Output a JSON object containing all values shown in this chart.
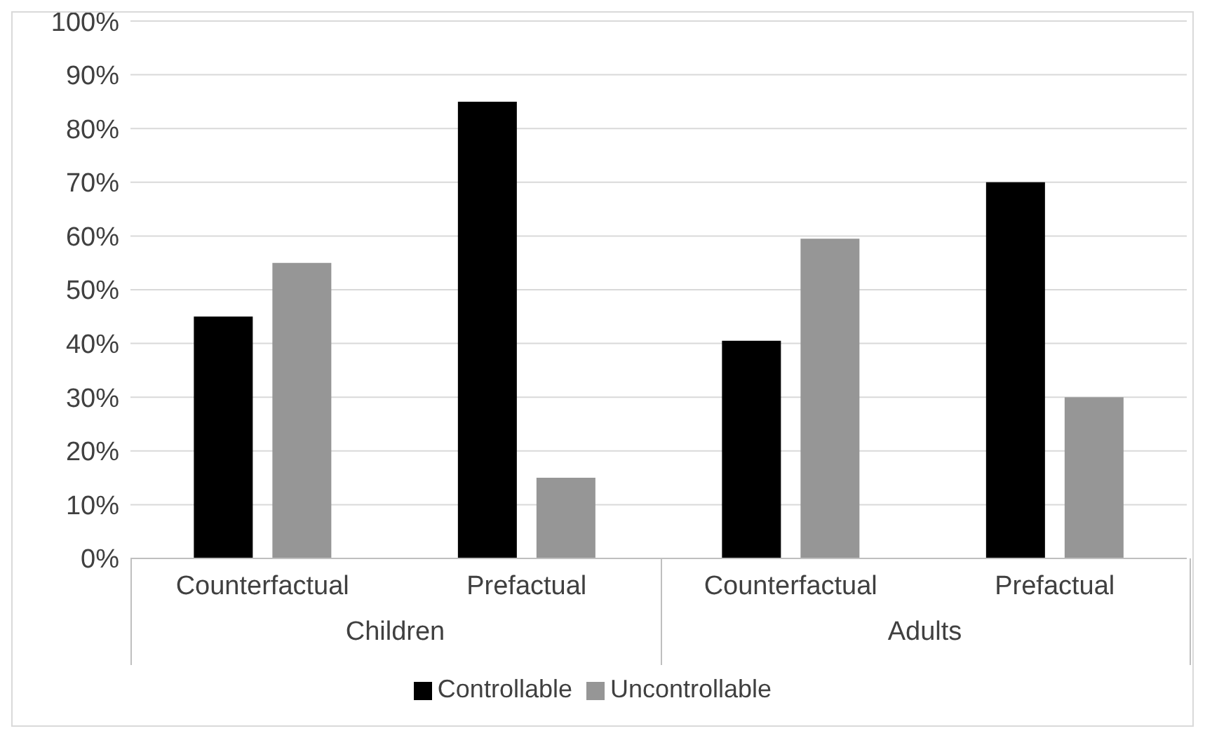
{
  "chart_data": {
    "type": "bar",
    "categories": [
      "Counterfactual",
      "Prefactual",
      "Counterfactual",
      "Prefactual"
    ],
    "series": [
      {
        "name": "Controllable",
        "color": "#000000",
        "values": [
          45,
          85,
          40.5,
          70
        ]
      },
      {
        "name": "Uncontrollable",
        "color": "#969696",
        "values": [
          55,
          15,
          59.5,
          30
        ]
      }
    ],
    "annotations": [
      "Children",
      "Adults"
    ],
    "ylim": [
      0,
      100
    ],
    "yticks": [
      {
        "value": 0,
        "label": "0%"
      },
      {
        "value": 10,
        "label": "10%"
      },
      {
        "value": 20,
        "label": "20%"
      },
      {
        "value": 30,
        "label": "30%"
      },
      {
        "value": 40,
        "label": "40%"
      },
      {
        "value": 50,
        "label": "50%"
      },
      {
        "value": 60,
        "label": "60%"
      },
      {
        "value": 70,
        "label": "70%"
      },
      {
        "value": 80,
        "label": "80%"
      },
      {
        "value": 90,
        "label": "90%"
      },
      {
        "value": 100,
        "label": "100%"
      }
    ],
    "grid": "y",
    "legend": "bottom"
  }
}
